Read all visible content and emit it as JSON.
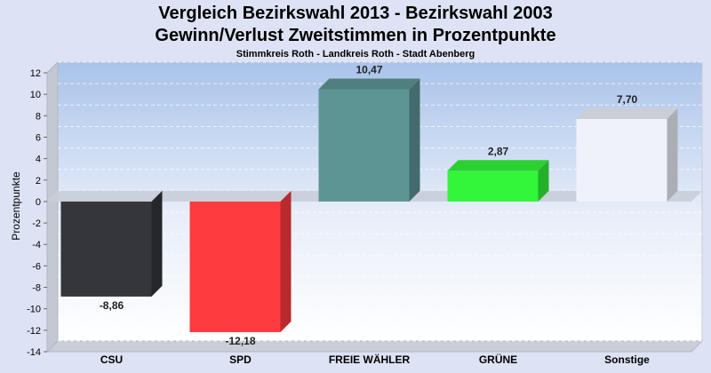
{
  "chart_data": {
    "type": "bar",
    "title": "Vergleich Bezirkswahl 2013 - Bezirkswahl 2003",
    "subtitle": "Gewinn/Verlust Zweitstimmen in Prozentpunkte",
    "subsubtitle": "Stimmkreis Roth - Landkreis Roth - Stadt Abenberg",
    "ylabel": "Prozentpunkte",
    "xlabel": "",
    "ylim": [
      -14,
      12
    ],
    "yticks": [
      12,
      10,
      8,
      6,
      4,
      2,
      0,
      -2,
      -4,
      -6,
      -8,
      -10,
      -12,
      -14
    ],
    "ytick_labels": [
      "12",
      "10",
      "8",
      "6",
      "4",
      "2",
      "0",
      "-2",
      "-4",
      "-6",
      "-8",
      "-10",
      "-12",
      "-14"
    ],
    "categories": [
      "CSU",
      "SPD",
      "FREIE WÄHLER",
      "GRÜNE",
      "Sonstige"
    ],
    "values": [
      -8.86,
      -12.18,
      10.47,
      2.87,
      7.7
    ],
    "value_labels": [
      "-8,86",
      "-12,18",
      "10,47",
      "2,87",
      "7,70"
    ],
    "colors": [
      "#34363c",
      "#fe3b3e",
      "#5d9595",
      "#33f53a",
      "#eff2fb"
    ],
    "grid": true,
    "legend": "none"
  }
}
